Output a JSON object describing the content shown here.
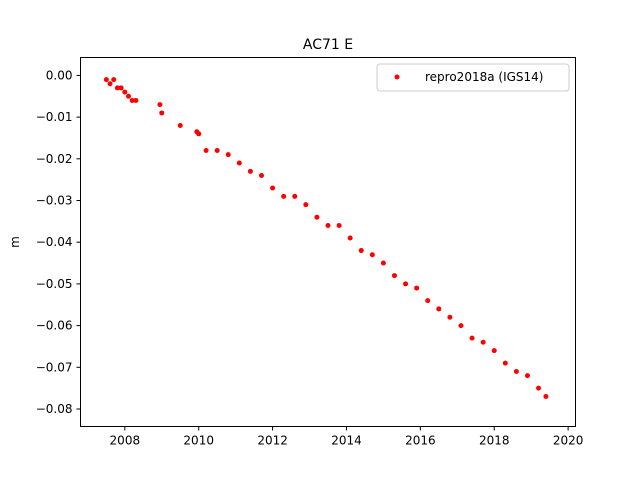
{
  "chart_data": {
    "type": "scatter",
    "title": "AC71 E",
    "xlabel": "",
    "ylabel": "m",
    "xlim": [
      2006.8,
      2020.2
    ],
    "ylim": [
      -0.0842,
      0.0043
    ],
    "xticks": [
      2008,
      2010,
      2012,
      2014,
      2016,
      2018,
      2020
    ],
    "xtick_labels": [
      "2008",
      "2010",
      "2012",
      "2014",
      "2016",
      "2018",
      "2020"
    ],
    "yticks": [
      0.0,
      -0.01,
      -0.02,
      -0.03,
      -0.04,
      -0.05,
      -0.06,
      -0.07,
      -0.08
    ],
    "ytick_labels": [
      "0.00",
      "−0.01",
      "−0.02",
      "−0.03",
      "−0.04",
      "−0.05",
      "−0.06",
      "−0.07",
      "−0.08"
    ],
    "grid": false,
    "legend_position": "top-right",
    "series": [
      {
        "name": "repro2018a (IGS14)",
        "color": "#ff0000",
        "marker": "circle",
        "points": [
          [
            2007.5,
            -0.001
          ],
          [
            2007.6,
            -0.002
          ],
          [
            2007.7,
            -0.001
          ],
          [
            2007.8,
            -0.003
          ],
          [
            2007.9,
            -0.003
          ],
          [
            2008.0,
            -0.004
          ],
          [
            2008.1,
            -0.005
          ],
          [
            2008.2,
            -0.006
          ],
          [
            2008.3,
            -0.006
          ],
          [
            2008.95,
            -0.007
          ],
          [
            2009.0,
            -0.009
          ],
          [
            2009.5,
            -0.012
          ],
          [
            2009.95,
            -0.0135
          ],
          [
            2010.0,
            -0.014
          ],
          [
            2010.2,
            -0.018
          ],
          [
            2010.5,
            -0.018
          ],
          [
            2010.8,
            -0.019
          ],
          [
            2011.1,
            -0.021
          ],
          [
            2011.4,
            -0.023
          ],
          [
            2011.7,
            -0.024
          ],
          [
            2012.0,
            -0.027
          ],
          [
            2012.3,
            -0.029
          ],
          [
            2012.6,
            -0.029
          ],
          [
            2012.9,
            -0.031
          ],
          [
            2013.2,
            -0.034
          ],
          [
            2013.5,
            -0.036
          ],
          [
            2013.8,
            -0.036
          ],
          [
            2014.1,
            -0.039
          ],
          [
            2014.4,
            -0.042
          ],
          [
            2014.7,
            -0.043
          ],
          [
            2015.0,
            -0.045
          ],
          [
            2015.3,
            -0.048
          ],
          [
            2015.6,
            -0.05
          ],
          [
            2015.9,
            -0.051
          ],
          [
            2016.2,
            -0.054
          ],
          [
            2016.5,
            -0.056
          ],
          [
            2016.8,
            -0.058
          ],
          [
            2017.1,
            -0.06
          ],
          [
            2017.4,
            -0.063
          ],
          [
            2017.7,
            -0.064
          ],
          [
            2018.0,
            -0.066
          ],
          [
            2018.3,
            -0.069
          ],
          [
            2018.6,
            -0.071
          ],
          [
            2018.9,
            -0.072
          ],
          [
            2019.2,
            -0.075
          ],
          [
            2019.4,
            -0.077
          ]
        ]
      }
    ]
  }
}
